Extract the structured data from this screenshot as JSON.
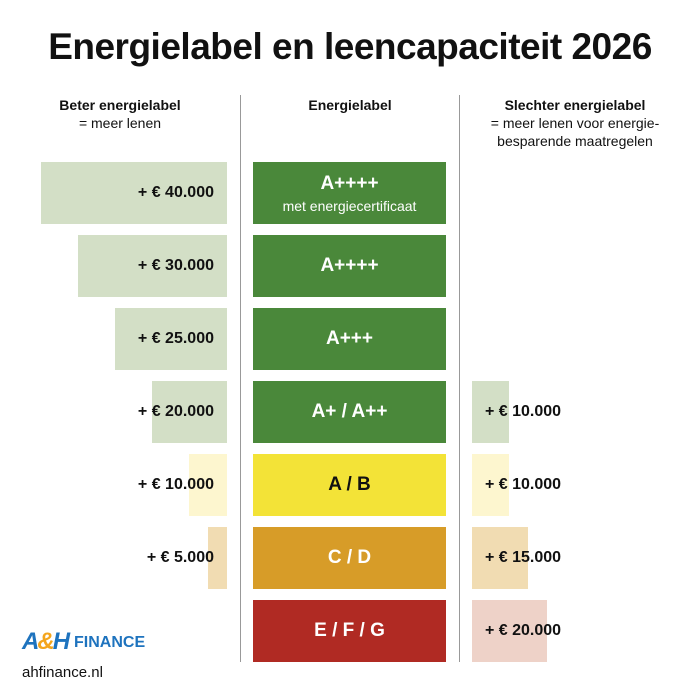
{
  "title": "Energielabel en leencapaciteit 2026",
  "columns": {
    "left": {
      "heading": "Beter energielabel",
      "sub": "= meer lenen"
    },
    "middle": {
      "heading": "Energielabel"
    },
    "right": {
      "heading": "Slechter energielabel",
      "sub_line1": "= meer lenen voor energie-",
      "sub_line2": "besparende maatregelen"
    }
  },
  "rows": [
    {
      "label": "A++++",
      "sublabel": "met energiecertificaat",
      "left_value": "+ € 40.000",
      "right_value": "",
      "label_color": "#4a883a",
      "bar_color": "#d3dfc6"
    },
    {
      "label": "A++++",
      "sublabel": "",
      "left_value": "+ € 30.000",
      "right_value": "",
      "label_color": "#4a883a",
      "bar_color": "#d3dfc6"
    },
    {
      "label": "A+++",
      "sublabel": "",
      "left_value": "+ € 25.000",
      "right_value": "",
      "label_color": "#4a883a",
      "bar_color": "#d3dfc6"
    },
    {
      "label": "A+ / A++",
      "sublabel": "",
      "left_value": "+ € 20.000",
      "right_value": "+ € 10.000",
      "label_color": "#4a883a",
      "bar_color": "#d3dfc6"
    },
    {
      "label": "A / B",
      "sublabel": "",
      "left_value": "+ € 10.000",
      "right_value": "+ € 10.000",
      "label_color": "#f3e337",
      "bar_color": "#fdf6cf"
    },
    {
      "label": "C / D",
      "sublabel": "",
      "left_value": "+ € 5.000",
      "right_value": "+ € 15.000",
      "label_color": "#d79c28",
      "bar_color": "#f1dcb2"
    },
    {
      "label": "E / F / G",
      "sublabel": "",
      "left_value": "",
      "right_value": "+ € 20.000",
      "label_color": "#b02a23",
      "bar_color": "#eed2c8"
    }
  ],
  "logo": {
    "mark_a": "A",
    "mark_amp": "&",
    "mark_h": "H",
    "text": "FINANCE"
  },
  "website": "ahfinance.nl"
}
